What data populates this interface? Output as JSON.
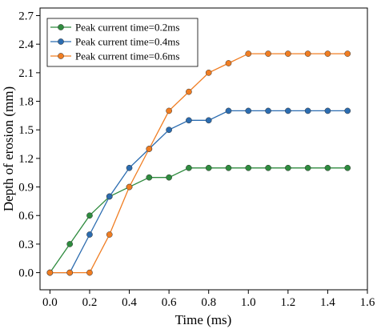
{
  "chart_data": {
    "type": "line",
    "xlabel": "Time (ms)",
    "ylabel": "Depth of erosion (mm)",
    "xlim": [
      -0.05,
      1.6
    ],
    "ylim": [
      -0.18,
      2.78
    ],
    "xticks": [
      0.0,
      0.2,
      0.4,
      0.6,
      0.8,
      1.0,
      1.2,
      1.4,
      1.6
    ],
    "xtick_labels": [
      "0.0",
      "0.2",
      "0.4",
      "0.6",
      "0.8",
      "1.0",
      "1.2",
      "1.4",
      "1.6"
    ],
    "yticks": [
      0.0,
      0.3,
      0.6,
      0.9,
      1.2,
      1.5,
      1.8,
      2.1,
      2.4,
      2.7
    ],
    "ytick_labels": [
      "0.0",
      "0.3",
      "0.6",
      "0.9",
      "1.2",
      "1.5",
      "1.8",
      "2.1",
      "2.4",
      "2.7"
    ],
    "grid": false,
    "legend_position": "top-left",
    "x": [
      0.0,
      0.1,
      0.2,
      0.3,
      0.4,
      0.5,
      0.6,
      0.7,
      0.8,
      0.9,
      1.0,
      1.1,
      1.2,
      1.3,
      1.4,
      1.5
    ],
    "series": [
      {
        "name": "Peak current time=0.2ms",
        "color": "#2e8b3e",
        "values": [
          0.0,
          0.3,
          0.6,
          0.8,
          0.9,
          1.0,
          1.0,
          1.1,
          1.1,
          1.1,
          1.1,
          1.1,
          1.1,
          1.1,
          1.1,
          1.1
        ]
      },
      {
        "name": "Peak current time=0.4ms",
        "color": "#2b6cb0",
        "values": [
          0.0,
          0.0,
          0.4,
          0.8,
          1.1,
          1.3,
          1.5,
          1.6,
          1.6,
          1.7,
          1.7,
          1.7,
          1.7,
          1.7,
          1.7,
          1.7
        ]
      },
      {
        "name": "Peak current time=0.6ms",
        "color": "#f07d22",
        "values": [
          0.0,
          0.0,
          0.0,
          0.4,
          0.9,
          1.3,
          1.7,
          1.9,
          2.1,
          2.2,
          2.3,
          2.3,
          2.3,
          2.3,
          2.3,
          2.3
        ]
      }
    ]
  }
}
